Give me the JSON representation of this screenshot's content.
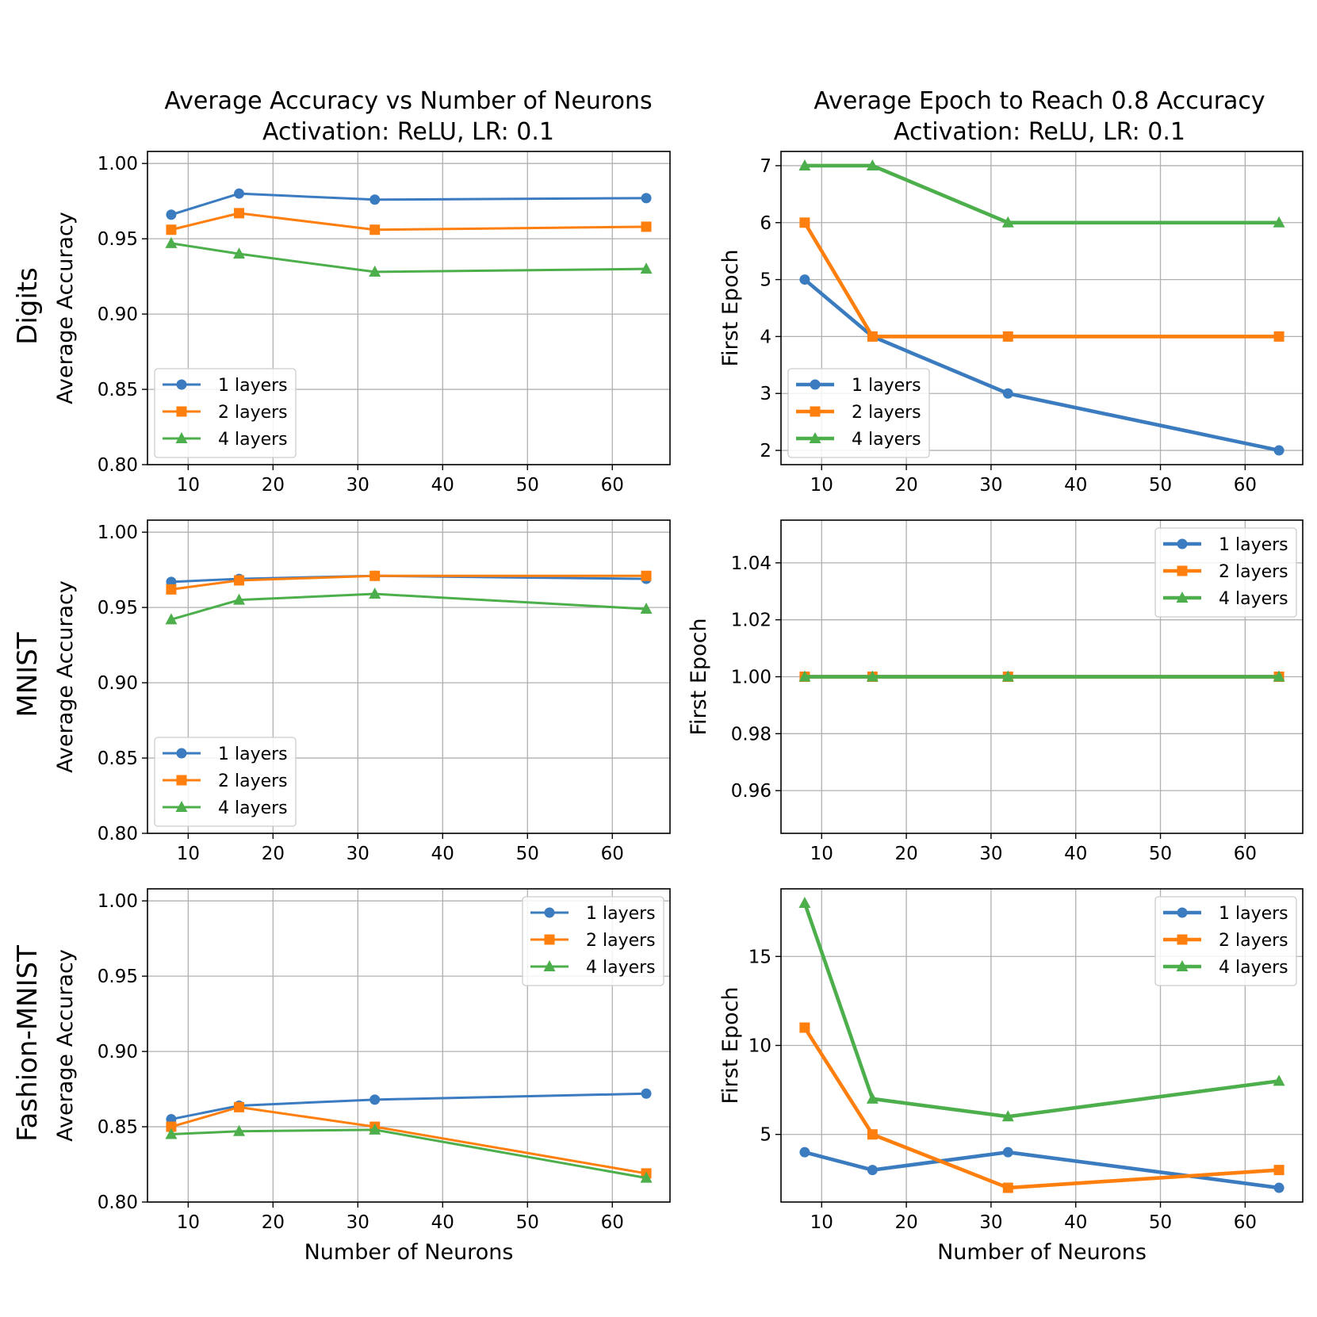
{
  "column_titles": [
    {
      "line1": "Average Accuracy vs Number of Neurons",
      "line2": "Activation: ReLU, LR: 0.1"
    },
    {
      "line1": "Average Epoch to Reach 0.8 Accuracy",
      "line2": "Activation: ReLU, LR: 0.1"
    }
  ],
  "row_labels": [
    "Digits",
    "MNIST",
    "Fashion-MNIST"
  ],
  "colors": {
    "1 layers": "#3b7bbf",
    "2 layers": "#ff7f0e",
    "4 layers": "#4caf4c"
  },
  "chart_data": [
    {
      "id": "digits-accuracy",
      "type": "line",
      "dataset": "Digits",
      "xlabel": "",
      "ylabel": "Average Accuracy",
      "xlim": [
        5.2,
        66.8
      ],
      "ylim": [
        0.8,
        1.008
      ],
      "xticks": [
        10,
        20,
        30,
        40,
        50,
        60
      ],
      "yticks": [
        0.8,
        0.85,
        0.9,
        0.95,
        1.0
      ],
      "ytick_decimals": 2,
      "legend_position": "lower-left",
      "grid": true,
      "line_width": "normal",
      "x": [
        8,
        16,
        32,
        64
      ],
      "series": [
        {
          "name": "1 layers",
          "marker": "circle",
          "values": [
            0.966,
            0.98,
            0.976,
            0.977
          ]
        },
        {
          "name": "2 layers",
          "marker": "square",
          "values": [
            0.956,
            0.967,
            0.956,
            0.958
          ]
        },
        {
          "name": "4 layers",
          "marker": "triangle",
          "values": [
            0.947,
            0.94,
            0.928,
            0.93
          ]
        }
      ]
    },
    {
      "id": "digits-epoch",
      "type": "line",
      "dataset": "Digits",
      "xlabel": "",
      "ylabel": "First Epoch",
      "xlim": [
        5.2,
        66.8
      ],
      "ylim": [
        1.75,
        7.25
      ],
      "xticks": [
        10,
        20,
        30,
        40,
        50,
        60
      ],
      "yticks": [
        2,
        3,
        4,
        5,
        6,
        7
      ],
      "ytick_decimals": 0,
      "legend_position": "lower-left",
      "grid": true,
      "line_width": "thick",
      "x": [
        8,
        16,
        32,
        64
      ],
      "series": [
        {
          "name": "1 layers",
          "marker": "circle",
          "values": [
            5,
            4,
            3,
            2
          ]
        },
        {
          "name": "2 layers",
          "marker": "square",
          "values": [
            6,
            4,
            4,
            4
          ]
        },
        {
          "name": "4 layers",
          "marker": "triangle",
          "values": [
            7,
            7,
            6,
            6
          ]
        }
      ]
    },
    {
      "id": "mnist-accuracy",
      "type": "line",
      "dataset": "MNIST",
      "xlabel": "",
      "ylabel": "Average Accuracy",
      "xlim": [
        5.2,
        66.8
      ],
      "ylim": [
        0.8,
        1.008
      ],
      "xticks": [
        10,
        20,
        30,
        40,
        50,
        60
      ],
      "yticks": [
        0.8,
        0.85,
        0.9,
        0.95,
        1.0
      ],
      "ytick_decimals": 2,
      "legend_position": "lower-left",
      "grid": true,
      "line_width": "normal",
      "x": [
        8,
        16,
        32,
        64
      ],
      "series": [
        {
          "name": "1 layers",
          "marker": "circle",
          "values": [
            0.967,
            0.969,
            0.971,
            0.969
          ]
        },
        {
          "name": "2 layers",
          "marker": "square",
          "values": [
            0.962,
            0.968,
            0.971,
            0.971
          ]
        },
        {
          "name": "4 layers",
          "marker": "triangle",
          "values": [
            0.942,
            0.955,
            0.959,
            0.949
          ]
        }
      ]
    },
    {
      "id": "mnist-epoch",
      "type": "line",
      "dataset": "MNIST",
      "xlabel": "",
      "ylabel": "First Epoch",
      "xlim": [
        5.2,
        66.8
      ],
      "ylim": [
        0.945,
        1.055
      ],
      "xticks": [
        10,
        20,
        30,
        40,
        50,
        60
      ],
      "yticks": [
        0.96,
        0.98,
        1.0,
        1.02,
        1.04
      ],
      "ytick_decimals": 2,
      "legend_position": "upper-right",
      "grid": true,
      "line_width": "thick",
      "x": [
        8,
        16,
        32,
        64
      ],
      "series": [
        {
          "name": "1 layers",
          "marker": "circle",
          "values": [
            1,
            1,
            1,
            1
          ]
        },
        {
          "name": "2 layers",
          "marker": "square",
          "values": [
            1,
            1,
            1,
            1
          ]
        },
        {
          "name": "4 layers",
          "marker": "triangle",
          "values": [
            1,
            1,
            1,
            1
          ]
        }
      ]
    },
    {
      "id": "fashion-accuracy",
      "type": "line",
      "dataset": "Fashion-MNIST",
      "xlabel": "Number of Neurons",
      "ylabel": "Average Accuracy",
      "xlim": [
        5.2,
        66.8
      ],
      "ylim": [
        0.8,
        1.008
      ],
      "xticks": [
        10,
        20,
        30,
        40,
        50,
        60
      ],
      "yticks": [
        0.8,
        0.85,
        0.9,
        0.95,
        1.0
      ],
      "ytick_decimals": 2,
      "legend_position": "upper-right",
      "grid": true,
      "line_width": "normal",
      "x": [
        8,
        16,
        32,
        64
      ],
      "series": [
        {
          "name": "1 layers",
          "marker": "circle",
          "values": [
            0.855,
            0.864,
            0.868,
            0.872
          ]
        },
        {
          "name": "2 layers",
          "marker": "square",
          "values": [
            0.85,
            0.863,
            0.85,
            0.819
          ]
        },
        {
          "name": "4 layers",
          "marker": "triangle",
          "values": [
            0.845,
            0.847,
            0.848,
            0.816
          ]
        }
      ]
    },
    {
      "id": "fashion-epoch",
      "type": "line",
      "dataset": "Fashion-MNIST",
      "xlabel": "Number of Neurons",
      "ylabel": "First Epoch",
      "xlim": [
        5.2,
        66.8
      ],
      "ylim": [
        1.2,
        18.8
      ],
      "xticks": [
        10,
        20,
        30,
        40,
        50,
        60
      ],
      "yticks": [
        5,
        10,
        15
      ],
      "ytick_decimals": 0,
      "legend_position": "upper-right",
      "grid": true,
      "line_width": "thick",
      "x": [
        8,
        16,
        32,
        64
      ],
      "series": [
        {
          "name": "1 layers",
          "marker": "circle",
          "values": [
            4,
            3,
            4,
            2
          ]
        },
        {
          "name": "2 layers",
          "marker": "square",
          "values": [
            11,
            5,
            2,
            3
          ]
        },
        {
          "name": "4 layers",
          "marker": "triangle",
          "values": [
            18,
            7,
            6,
            8
          ]
        }
      ]
    }
  ]
}
